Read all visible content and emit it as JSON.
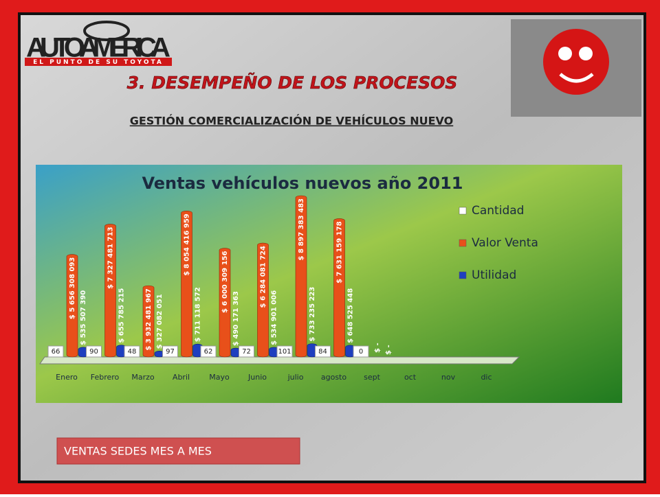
{
  "logo": {
    "brand": "AUTOAMERICA",
    "tagline": "EL PUNTO DE SU TOYOTA"
  },
  "heading": "3. DESEMPEÑO DE LOS PROCESOS",
  "subheading": "GESTIÓN COMERCIALIZACIÓN DE VEHÍCULOS NUEVO",
  "button": "VENTAS SEDES MES A MES",
  "chart_data": {
    "type": "bar",
    "title": "Ventas vehículos nuevos año 2011",
    "categories": [
      "Enero",
      "Febrero",
      "Marzo",
      "Abril",
      "Mayo",
      "Junio",
      "julio",
      "agosto",
      "sept",
      "oct",
      "nov",
      "dic"
    ],
    "series": [
      {
        "name": "Cantidad",
        "color": "#ffffff",
        "values": [
          66,
          90,
          48,
          97,
          62,
          72,
          101,
          84,
          0,
          null,
          null,
          null
        ]
      },
      {
        "name": "Valor Venta",
        "color": "#e8501a",
        "values": [
          5656308093,
          7327481713,
          3932481967,
          8054416959,
          6000309156,
          6284081724,
          8897383483,
          7631159178,
          0,
          null,
          null,
          null
        ],
        "value_labels": [
          "$ 5 656 308 093",
          "$ 7 327 481 713",
          "$ 3 932 481 967",
          "$ 8 054 416 959",
          "$ 6 000 309 156",
          "$ 6 284 081 724",
          "$ 8 897 383 483",
          "$ 7 631 159 178",
          "$ -",
          null,
          null,
          null
        ]
      },
      {
        "name": "Utilidad",
        "color": "#1f3fbf",
        "values": [
          535507390,
          655785215,
          327082051,
          711118572,
          490171363,
          534901006,
          733235223,
          648525448,
          0,
          null,
          null,
          null
        ],
        "value_labels": [
          "$ 535 507 390",
          "$ 655 785 215",
          "$ 327 082 051",
          "$ 711 118 572",
          "$ 490 171 363",
          "$ 534 901 006",
          "$ 733 235 223",
          "$ 648 525 448",
          "$ -",
          null,
          null,
          null
        ]
      }
    ],
    "legend": "right"
  }
}
